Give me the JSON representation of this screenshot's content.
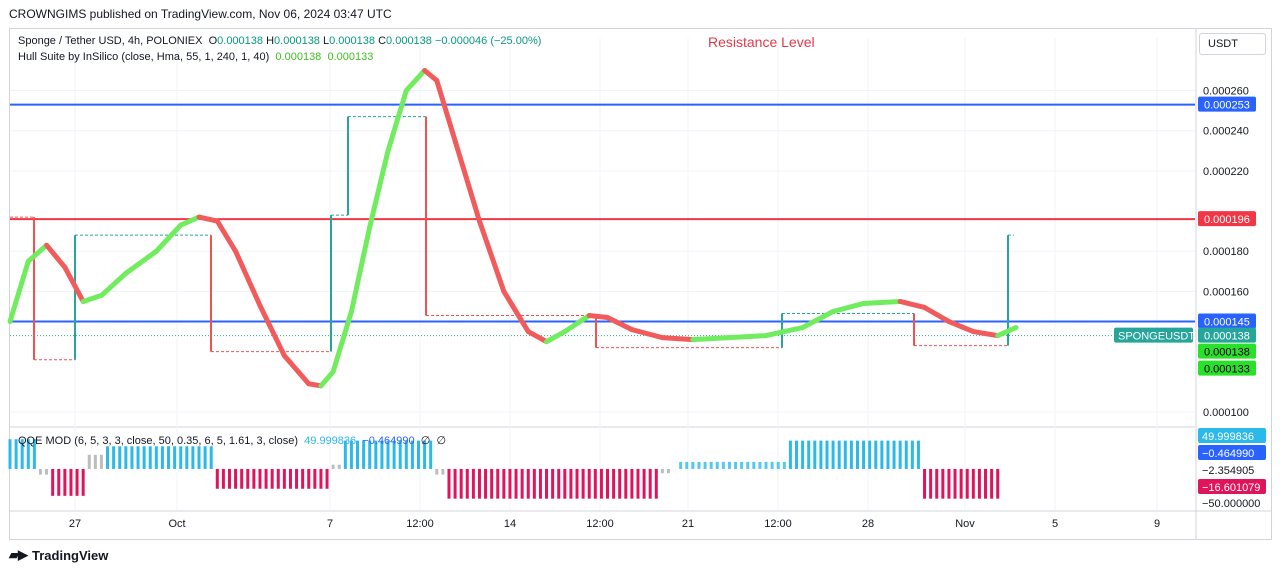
{
  "header": {
    "published": "CROWNGIMS published on TradingView.com, Nov 06, 2024 03:47 UTC"
  },
  "legend": {
    "symbol": "Sponge / Tether USD, 4h, POLONIEX",
    "ohlc": {
      "o_label": "O",
      "o": "0.000138",
      "h_label": "H",
      "h": "0.000138",
      "l_label": "L",
      "l": "0.000138",
      "c_label": "C",
      "c": "0.000138",
      "change": "−0.000046 (−25.00%)"
    },
    "indicator": "Hull Suite by InSilico (close, Hma, 55, 1, 240, 1, 40)",
    "indicator_values": [
      "0.000138",
      "0.000133"
    ],
    "annotation": "Resistance Level",
    "qqe_label": "QQE MOD (6, 5, 3, 3, close, 50, 0.35, 6, 5, 1.61, 3, close)",
    "qqe_values": [
      "49.999836",
      "−0.464990"
    ],
    "qqe_symbols": [
      "∅",
      "∅"
    ]
  },
  "toolbar": {
    "currency_button": "USDT"
  },
  "footer": {
    "brand": "TradingView"
  },
  "colors": {
    "bull": "#72ec5f",
    "bear": "#f25b5b",
    "support": "#2962ff",
    "resistance": "#f23645",
    "candle_up": "#26a69a",
    "candle_down": "#ef5350",
    "hist_up": "#2bb9ec",
    "hist_down": "#e0145b",
    "hist_neutral": "#bdbdbd",
    "hist_pale": "#56c8ef"
  },
  "chart_data": [
    {
      "type": "line",
      "title": "Sponge / Tether USD, 4h, POLONIEX",
      "x_ticks": [
        "27",
        "Oct",
        "7",
        "12:00",
        "14",
        "12:00",
        "21",
        "12:00",
        "28",
        "Nov",
        "5",
        "9"
      ],
      "y_ticks": [
        0.0001,
        0.00016,
        0.00018,
        0.00022,
        0.00024,
        0.00026
      ],
      "ylim": [
        9.35e-05,
        0.0002762
      ],
      "horizontal_lines": [
        {
          "name": "resistance",
          "value": 0.000196,
          "label": "0.000196"
        },
        {
          "name": "support-upper",
          "value": 0.000253,
          "label": "0.000253"
        },
        {
          "name": "support-lower",
          "value": 0.000145,
          "label": "0.000145"
        }
      ],
      "price_labels": [
        {
          "text": "SPONGEUSDT",
          "value": 0.000138
        },
        {
          "text": "0.000138",
          "value": 0.000138
        },
        {
          "text": "0.000138",
          "value": 0.000138
        },
        {
          "text": "0.000133",
          "value": 0.000133
        }
      ],
      "renko_bricks": [
        {
          "start": 0.000197,
          "end": 0.000126
        },
        {
          "start": 0.000126,
          "end": 0.000188
        },
        {
          "start": 0.000188,
          "end": 0.00013
        },
        {
          "start": 0.00013,
          "end": 0.000198
        },
        {
          "start": 0.000198,
          "end": 0.000247
        },
        {
          "start": 0.000247,
          "end": 0.000148
        },
        {
          "start": 0.000148,
          "end": 0.000132
        },
        {
          "start": 0.000132,
          "end": 0.000149
        },
        {
          "start": 0.000149,
          "end": 0.000133
        },
        {
          "start": 0.000133,
          "end": 0.000188
        }
      ],
      "hull_suite": [
        {
          "x": 0,
          "y": 0.000145
        },
        {
          "x": 3,
          "y": 0.000175
        },
        {
          "x": 6,
          "y": 0.000183
        },
        {
          "x": 9,
          "y": 0.000172
        },
        {
          "x": 12,
          "y": 0.000155
        },
        {
          "x": 15,
          "y": 0.000158
        },
        {
          "x": 19,
          "y": 0.000169
        },
        {
          "x": 24,
          "y": 0.00018
        },
        {
          "x": 28,
          "y": 0.000193
        },
        {
          "x": 31,
          "y": 0.000197
        },
        {
          "x": 34,
          "y": 0.000195
        },
        {
          "x": 37,
          "y": 0.00018
        },
        {
          "x": 41,
          "y": 0.000153
        },
        {
          "x": 45,
          "y": 0.000128
        },
        {
          "x": 49,
          "y": 0.000114
        },
        {
          "x": 51,
          "y": 0.000113
        },
        {
          "x": 53,
          "y": 0.00012
        },
        {
          "x": 56,
          "y": 0.00015
        },
        {
          "x": 59,
          "y": 0.000192
        },
        {
          "x": 62,
          "y": 0.00023
        },
        {
          "x": 65,
          "y": 0.00026
        },
        {
          "x": 68,
          "y": 0.00027
        },
        {
          "x": 70,
          "y": 0.000265
        },
        {
          "x": 73,
          "y": 0.000235
        },
        {
          "x": 77,
          "y": 0.000195
        },
        {
          "x": 81,
          "y": 0.00016
        },
        {
          "x": 85,
          "y": 0.00014
        },
        {
          "x": 88,
          "y": 0.000135
        },
        {
          "x": 91,
          "y": 0.00014
        },
        {
          "x": 95,
          "y": 0.000148
        },
        {
          "x": 98,
          "y": 0.000147
        },
        {
          "x": 102,
          "y": 0.000141
        },
        {
          "x": 107,
          "y": 0.000137
        },
        {
          "x": 112,
          "y": 0.000136
        },
        {
          "x": 118,
          "y": 0.000137
        },
        {
          "x": 124,
          "y": 0.000138
        },
        {
          "x": 130,
          "y": 0.000142
        },
        {
          "x": 135,
          "y": 0.00015
        },
        {
          "x": 140,
          "y": 0.000154
        },
        {
          "x": 146,
          "y": 0.000155
        },
        {
          "x": 150,
          "y": 0.000152
        },
        {
          "x": 154,
          "y": 0.000145
        },
        {
          "x": 158,
          "y": 0.00014
        },
        {
          "x": 162,
          "y": 0.000138
        },
        {
          "x": 165,
          "y": 0.000142
        }
      ]
    },
    {
      "type": "bar",
      "title": "QQE MOD (6, 5, 3, 3, close, 50, 0.35, 6, 5, 1.61, 3, close)",
      "ylim": [
        -58,
        55
      ],
      "y_labels": [
        {
          "text": "49.999836",
          "value": 49.999836
        },
        {
          "text": "−0.464990",
          "value": -0.46499
        },
        {
          "text": "−2.354905",
          "value": -2.354905
        },
        {
          "text": "−16.601079",
          "value": -16.601079
        },
        {
          "text": "−50.000000",
          "value": -50
        }
      ],
      "segments": [
        {
          "from": 0,
          "to": 4,
          "value": 42,
          "kind": "up"
        },
        {
          "from": 5,
          "to": 6,
          "value": -8,
          "kind": "neutral"
        },
        {
          "from": 7,
          "to": 12,
          "value": -38,
          "kind": "down"
        },
        {
          "from": 13,
          "to": 15,
          "value": 20,
          "kind": "neutral"
        },
        {
          "from": 16,
          "to": 33,
          "value": 32,
          "kind": "up"
        },
        {
          "from": 34,
          "to": 52,
          "value": -28,
          "kind": "down"
        },
        {
          "from": 53,
          "to": 54,
          "value": 6,
          "kind": "neutral"
        },
        {
          "from": 55,
          "to": 69,
          "value": 40,
          "kind": "up"
        },
        {
          "from": 70,
          "to": 71,
          "value": -8,
          "kind": "neutral"
        },
        {
          "from": 72,
          "to": 106,
          "value": -42,
          "kind": "down"
        },
        {
          "from": 107,
          "to": 108,
          "value": -6,
          "kind": "neutral"
        },
        {
          "from": 110,
          "to": 127,
          "value": 10,
          "kind": "pale"
        },
        {
          "from": 128,
          "to": 149,
          "value": 40,
          "kind": "up"
        },
        {
          "from": 150,
          "to": 162,
          "value": -42,
          "kind": "down"
        }
      ]
    }
  ]
}
